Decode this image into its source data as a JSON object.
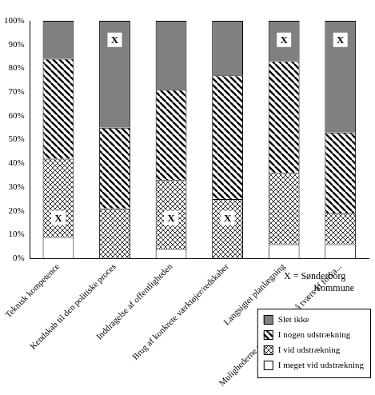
{
  "chart_data": {
    "type": "bar",
    "stacked": true,
    "grid": false,
    "legend": "bottom-right",
    "categories": [
      "Teknisk kompetence",
      "Kendskab til den politiske proces",
      "Inddragelse af offentligheden",
      "Brug af konkrete værktøjer/redskaber",
      "Langsigtet planlægning",
      "Mulighederne ved at arbejde på tværs af forva..."
    ],
    "series": [
      {
        "name": "I meget vid udstrækning",
        "color": "#ffffff",
        "values": [
          9,
          0,
          4,
          0,
          6,
          6
        ]
      },
      {
        "name": "I vid udstrækning",
        "color": "#000000",
        "values": [
          33,
          21,
          29,
          25,
          30,
          13
        ]
      },
      {
        "name": "I nogen udstrækning",
        "color": "#000000",
        "values": [
          42,
          34,
          38,
          52,
          47,
          34
        ]
      },
      {
        "name": "Slet ikke",
        "color": "#808080",
        "values": [
          16,
          45,
          29,
          23,
          17,
          47
        ]
      }
    ],
    "ylim": [
      0,
      100
    ],
    "yticks": [
      {
        "value": 0,
        "label": "0%"
      },
      {
        "value": 10,
        "label": "10%"
      },
      {
        "value": 20,
        "label": "20%"
      },
      {
        "value": 30,
        "label": "30%"
      },
      {
        "value": 40,
        "label": "40%"
      },
      {
        "value": 50,
        "label": "50%"
      },
      {
        "value": 60,
        "label": "60%"
      },
      {
        "value": 70,
        "label": "70%"
      },
      {
        "value": 80,
        "label": "80%"
      },
      {
        "value": 90,
        "label": "90%"
      },
      {
        "value": 100,
        "label": "100%"
      }
    ],
    "annotations": [
      {
        "text": "X",
        "category": "Teknisk kompetence",
        "y": 17
      },
      {
        "text": "X",
        "category": "Kendskab til den politiske proces",
        "y": 92
      },
      {
        "text": "X",
        "category": "Inddragelse af offentligheden",
        "y": 17
      },
      {
        "text": "X",
        "category": "Brug af konkrete værktøjer/redskaber",
        "y": 17
      },
      {
        "text": "X",
        "category": "Langsigtet planlægning",
        "y": 92
      },
      {
        "text": "X",
        "category": "Mulighederne ved at arbejde på tværs af forva...",
        "y": 92
      }
    ],
    "note": "X = Sønderborg Kommune"
  }
}
